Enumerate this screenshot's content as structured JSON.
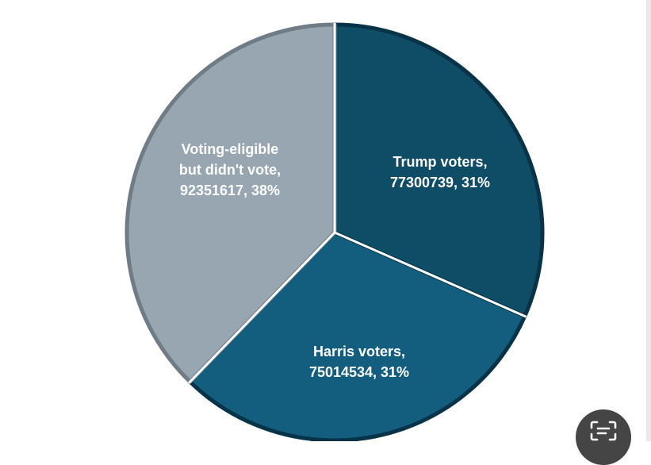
{
  "chart_data": {
    "type": "pie",
    "title": "",
    "slices": [
      {
        "label_lines": [
          "Trump voters,",
          "77300739, 31%"
        ],
        "category": "Trump voters",
        "value": 77300739,
        "percent": 31,
        "color": "#0f4c66"
      },
      {
        "label_lines": [
          "Harris voters,",
          "75014534, 31%"
        ],
        "category": "Harris voters",
        "value": 75014534,
        "percent": 31,
        "color": "#135e7f"
      },
      {
        "label_lines": [
          "Voting-eligible",
          "but didn't vote,",
          "92351617, 38%"
        ],
        "category": "Voting-eligible but didn't vote",
        "value": 92351617,
        "percent": 38,
        "color": "#97a6b1"
      }
    ],
    "border_colors": [
      "#063347",
      "#063347",
      "#6f7b85"
    ],
    "start_direction": "12 o'clock",
    "direction": "clockwise"
  },
  "overlay": {
    "scan_icon": "text-scan-icon"
  }
}
